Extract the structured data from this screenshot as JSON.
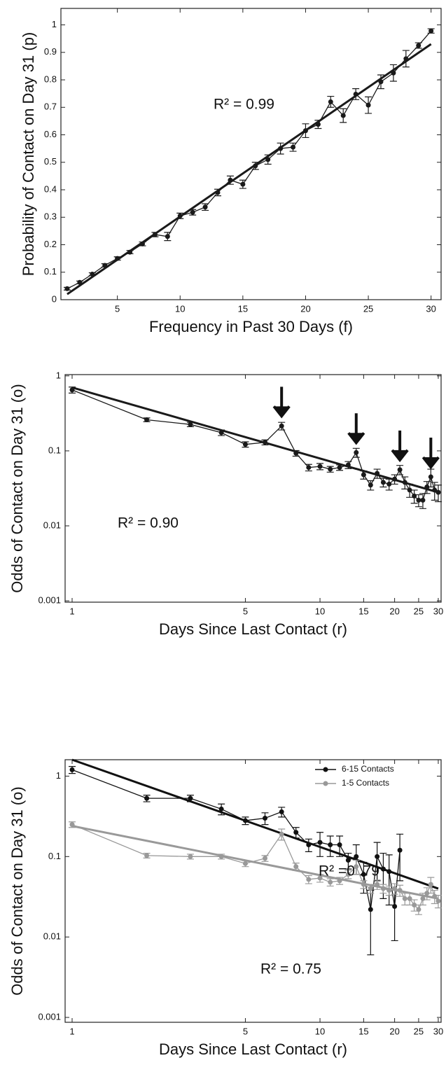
{
  "chart_data": [
    {
      "type": "line",
      "xscale": "linear",
      "yscale": "linear",
      "x_label": "Frequency in Past 30 Days (f)",
      "y_label": "Probability of Contact on Day 31 (p)",
      "xlim": [
        0.5,
        30.8
      ],
      "ylim": [
        0,
        1.06
      ],
      "xticks": [
        5,
        10,
        15,
        20,
        25,
        30
      ],
      "yticks": [
        0,
        0.1,
        0.2,
        0.3,
        0.4,
        0.5,
        0.6,
        0.7,
        0.8,
        0.9,
        1
      ],
      "annotations": [
        "R² = 0.99"
      ],
      "series": [
        {
          "color": "#1a1a1a",
          "x": [
            1,
            2,
            3,
            4,
            5,
            6,
            7,
            8,
            9,
            10,
            11,
            12,
            13,
            14,
            15,
            16,
            17,
            18,
            19,
            20,
            21,
            22,
            23,
            24,
            25,
            26,
            27,
            28,
            29,
            30
          ],
          "values": [
            0.04,
            0.063,
            0.093,
            0.125,
            0.15,
            0.173,
            0.203,
            0.237,
            0.23,
            0.305,
            0.318,
            0.337,
            0.39,
            0.435,
            0.42,
            0.487,
            0.51,
            0.55,
            0.555,
            0.615,
            0.638,
            0.72,
            0.67,
            0.748,
            0.708,
            0.793,
            0.825,
            0.877,
            0.925,
            0.978
          ],
          "errors": [
            0.005,
            0.005,
            0.005,
            0.006,
            0.006,
            0.006,
            0.007,
            0.008,
            0.015,
            0.01,
            0.01,
            0.012,
            0.012,
            0.015,
            0.015,
            0.013,
            0.017,
            0.02,
            0.015,
            0.025,
            0.015,
            0.02,
            0.025,
            0.02,
            0.03,
            0.025,
            0.03,
            0.03,
            0.01,
            0.008
          ],
          "fit_x": [
            1,
            30
          ],
          "fit_values": [
            0.02,
            0.93
          ]
        }
      ]
    },
    {
      "type": "line",
      "xscale": "log",
      "yscale": "log",
      "x_label": "Days Since Last Contact (r)",
      "y_label": "Odds of Contact on Day 31 (o)",
      "xlim": [
        0.937,
        30.8
      ],
      "ylim": [
        0.00096,
        1.04
      ],
      "xticks": [
        1,
        5,
        10,
        15,
        20,
        25,
        30
      ],
      "yticks": [
        0.001,
        0.01,
        0.1,
        1
      ],
      "annotations": [
        "R² = 0.90"
      ],
      "arrows_x": [
        7,
        14,
        21,
        28
      ],
      "series": [
        {
          "color": "#1a1a1a",
          "x": [
            1,
            2,
            3,
            4,
            5,
            6,
            7,
            8,
            9,
            10,
            11,
            12,
            13,
            14,
            15,
            16,
            17,
            18,
            19,
            20,
            21,
            22,
            23,
            24,
            25,
            26,
            27,
            28,
            29,
            30
          ],
          "values": [
            0.65,
            0.26,
            0.225,
            0.175,
            0.122,
            0.13,
            0.215,
            0.093,
            0.06,
            0.062,
            0.057,
            0.06,
            0.065,
            0.095,
            0.048,
            0.035,
            0.05,
            0.038,
            0.036,
            0.042,
            0.056,
            0.038,
            0.03,
            0.025,
            0.022,
            0.022,
            0.033,
            0.045,
            0.03,
            0.028
          ],
          "errors": [
            0.06,
            0.015,
            0.015,
            0.015,
            0.01,
            0.01,
            0.025,
            0.008,
            0.006,
            0.006,
            0.005,
            0.005,
            0.007,
            0.013,
            0.006,
            0.005,
            0.007,
            0.005,
            0.006,
            0.006,
            0.008,
            0.007,
            0.006,
            0.005,
            0.004,
            0.005,
            0.006,
            0.012,
            0.008,
            0.007
          ],
          "fit_x": [
            1,
            30
          ],
          "fit_values": [
            0.7,
            0.028
          ]
        }
      ]
    },
    {
      "type": "line",
      "xscale": "log",
      "yscale": "log",
      "x_label": "Days Since Last Contact (r)",
      "y_label": "Odds of Contact on Day 31 (o)",
      "xlim": [
        0.937,
        30.8
      ],
      "ylim": [
        0.00087,
        1.6
      ],
      "xticks": [
        1,
        5,
        10,
        15,
        20,
        25,
        30
      ],
      "yticks": [
        0.001,
        0.01,
        0.1,
        1
      ],
      "legend": "upper right",
      "annotations": [
        "R² =0 .79",
        "R² = 0.75"
      ],
      "series": [
        {
          "name": "6-15 Contacts",
          "color": "#111111",
          "x": [
            1,
            2,
            3,
            4,
            5,
            6,
            7,
            8,
            9,
            10,
            11,
            12,
            13,
            14,
            15,
            16,
            17,
            18,
            19,
            20,
            21
          ],
          "values": [
            1.2,
            0.53,
            0.53,
            0.39,
            0.28,
            0.3,
            0.36,
            0.2,
            0.14,
            0.15,
            0.14,
            0.14,
            0.09,
            0.1,
            0.06,
            0.022,
            0.1,
            0.07,
            0.065,
            0.024,
            0.12
          ],
          "errors": [
            0.12,
            0.05,
            0.05,
            0.06,
            0.03,
            0.05,
            0.05,
            0.03,
            0.025,
            0.05,
            0.04,
            0.04,
            0.02,
            0.04,
            0.025,
            0.016,
            0.05,
            0.04,
            0.04,
            0.015,
            0.07
          ],
          "fit_x": [
            1,
            30
          ],
          "fit_values": [
            1.6,
            0.04
          ]
        },
        {
          "name": "1-5 Contacts",
          "color": "#999999",
          "x": [
            1,
            2,
            3,
            4,
            5,
            6,
            7,
            8,
            9,
            10,
            11,
            12,
            13,
            14,
            15,
            16,
            17,
            18,
            19,
            20,
            21,
            22,
            23,
            24,
            25,
            26,
            27,
            28,
            29,
            30
          ],
          "values": [
            0.25,
            0.103,
            0.1,
            0.1,
            0.082,
            0.095,
            0.19,
            0.075,
            0.052,
            0.054,
            0.048,
            0.05,
            0.06,
            0.075,
            0.045,
            0.04,
            0.045,
            0.04,
            0.038,
            0.04,
            0.038,
            0.03,
            0.03,
            0.025,
            0.022,
            0.03,
            0.035,
            0.045,
            0.032,
            0.028
          ],
          "errors": [
            0.02,
            0.007,
            0.007,
            0.007,
            0.007,
            0.008,
            0.03,
            0.008,
            0.006,
            0.006,
            0.005,
            0.005,
            0.007,
            0.015,
            0.005,
            0.005,
            0.006,
            0.005,
            0.005,
            0.006,
            0.006,
            0.005,
            0.005,
            0.004,
            0.003,
            0.005,
            0.006,
            0.01,
            0.006,
            0.005
          ],
          "fit_x": [
            1,
            30
          ],
          "fit_values": [
            0.24,
            0.03
          ]
        }
      ]
    }
  ]
}
